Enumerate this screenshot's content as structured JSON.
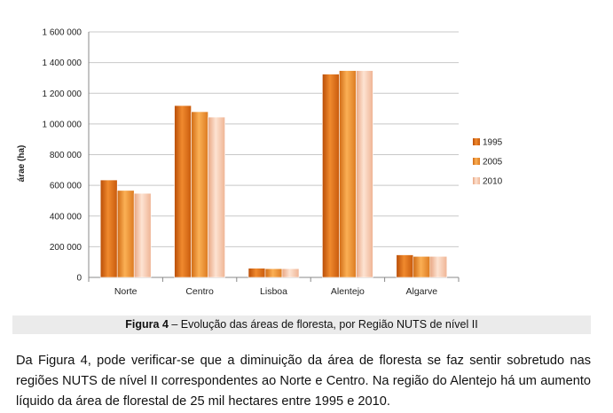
{
  "chart_data": {
    "type": "bar",
    "title": "",
    "xlabel": "",
    "ylabel": "árae (ha)",
    "ylim": [
      0,
      1600000
    ],
    "yticks": [
      "0",
      "200 000",
      "400 000",
      "600 000",
      "800 000",
      "1 000 000",
      "1 200 000",
      "1 400 000",
      "1 600 000"
    ],
    "categories": [
      "Norte",
      "Centro",
      "Lisboa",
      "Alentejo",
      "Algarve"
    ],
    "series": [
      {
        "name": "1995",
        "values": [
          635000,
          1120000,
          60000,
          1325000,
          147000
        ],
        "color": "#e06a12"
      },
      {
        "name": "2005",
        "values": [
          567000,
          1080000,
          57000,
          1348000,
          137000
        ],
        "color": "#f2922f"
      },
      {
        "name": "2010",
        "values": [
          548000,
          1045000,
          57000,
          1348000,
          137000
        ],
        "color": "#f8c7a8"
      }
    ],
    "grid": true,
    "legend_position": "right"
  },
  "caption": {
    "label": "Figura 4",
    "text": " – Evolução das áreas de floresta, por Região NUTS de nível II"
  },
  "body_text": "Da Figura 4, pode verificar-se que a diminuição da área de floresta se faz sentir sobretudo nas regiões NUTS de nível II correspondentes ao Norte e Centro. Na região do Alentejo há um aumento líquido da área de florestal de 25 mil hectares entre 1995 e 2010."
}
